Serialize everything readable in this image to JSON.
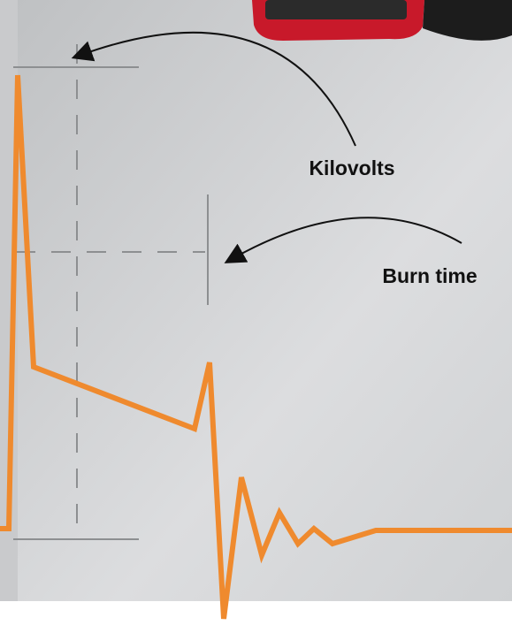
{
  "labels": {
    "kilovolts": "Kilovolts",
    "burn_time": "Burn time"
  }
}
